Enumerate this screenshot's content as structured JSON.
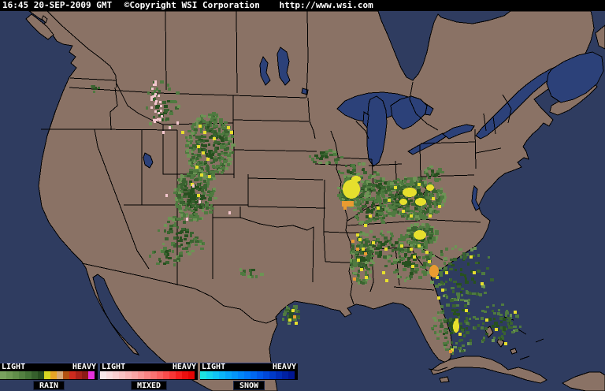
{
  "header": {
    "timestamp": "16:45 20-SEP-2009 GMT",
    "copyright": "©Copyright WSI Corporation",
    "url": "http://www.wsi.com"
  },
  "legend": {
    "panels": [
      {
        "name": "RAIN",
        "light_label": "LIGHT",
        "heavy_label": "HEAVY",
        "colors": [
          "#79a35e",
          "#6e9954",
          "#618e4a",
          "#538141",
          "#457437",
          "#36602c",
          "#284e20",
          "#d8d821",
          "#e8a426",
          "#d9a977",
          "#b45210",
          "#cc2b1e",
          "#a8221a",
          "#8c1a15",
          "#e832dd"
        ]
      },
      {
        "name": "MIXED",
        "light_label": "LIGHT",
        "heavy_label": "HEAVY",
        "colors": [
          "#f6e8e8",
          "#f8dcdc",
          "#f8cfcf",
          "#f8c2c2",
          "#f8b4b4",
          "#f8a5a5",
          "#f89595",
          "#f88484",
          "#f87272",
          "#f86060",
          "#f84c4c",
          "#f83636",
          "#f52020",
          "#ec0f0f",
          "#e40404"
        ]
      },
      {
        "name": "SNOW",
        "light_label": "LIGHT",
        "heavy_label": "HEAVY",
        "colors": [
          "#1ce2e2",
          "#16d4ec",
          "#10c5f4",
          "#0bb5f8",
          "#07a5f8",
          "#0495f8",
          "#0186f8",
          "#0077f6",
          "#0067f0",
          "#0057e6",
          "#0048d8",
          "#003ac8",
          "#002db6",
          "#0021a4",
          "#001692"
        ]
      }
    ]
  },
  "map": {
    "colors": {
      "ocean": "#2f3c60",
      "land": "#8a7265",
      "lake": "#2c4179",
      "border": "#000000",
      "header_bg": "#000000",
      "header_text": "#ffffff"
    },
    "radar_palette": {
      "green_light": "#6d9455",
      "green_mid": "#4f7a40",
      "green_dark": "#3a6330",
      "green_core": "#27501f",
      "yellow": "#e6df2d",
      "orange": "#e99b31",
      "mixed_pink": "#f3c6ce"
    }
  }
}
